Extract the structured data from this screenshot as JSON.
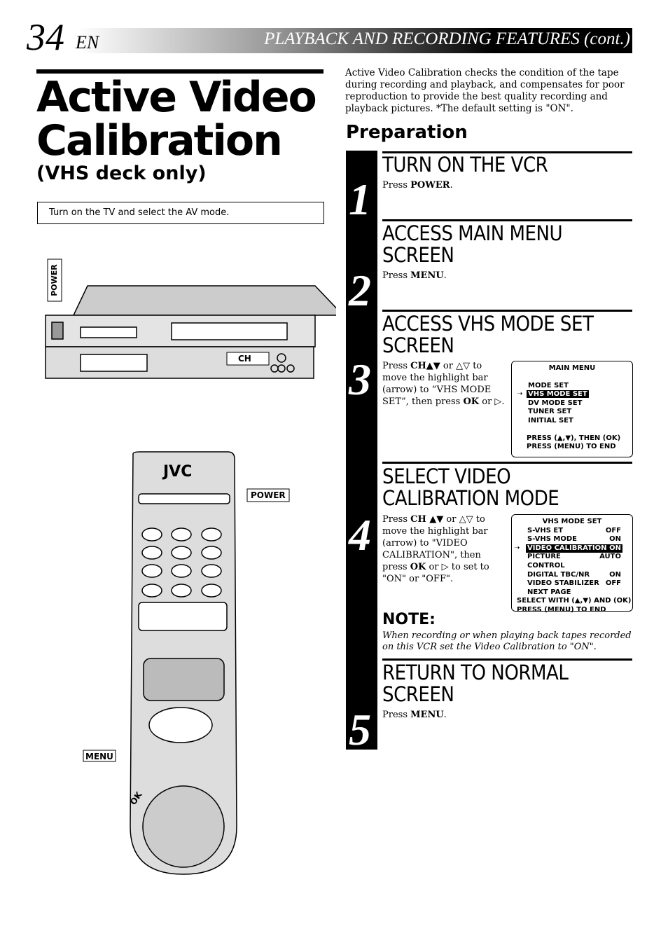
{
  "header": {
    "page_number": "34",
    "lang": "EN",
    "section": "PLAYBACK AND RECORDING FEATURES (cont.)"
  },
  "title": {
    "line1": "Active Video",
    "line2": "Calibration",
    "subtitle": "(VHS deck only)"
  },
  "note_box": "Turn on the TV and select the AV mode.",
  "intro": "Active Video Calibration checks the condition of the tape during recording and playback, and compensates for poor reproduction to provide the best quality recording and playback pictures. *The default setting is \"ON\".",
  "preparation": "Preparation",
  "illustration": {
    "vcr_power": "POWER",
    "vcr_ch": "CH",
    "brand": "JVC",
    "remote_power": "POWER",
    "menu": "MENU",
    "ok": "OK"
  },
  "steps": [
    {
      "number": "1",
      "heading": [
        "TURN ON THE VCR"
      ],
      "body": [
        {
          "text": "Press "
        },
        {
          "text": "POWER",
          "bold": true
        },
        {
          "text": "."
        }
      ]
    },
    {
      "number": "2",
      "heading": [
        "ACCESS MAIN MENU",
        "SCREEN"
      ],
      "body": [
        {
          "text": "Press "
        },
        {
          "text": "MENU",
          "bold": true
        },
        {
          "text": "."
        }
      ]
    },
    {
      "number": "3",
      "heading": [
        "ACCESS VHS MODE SET",
        "SCREEN"
      ],
      "body": [
        {
          "text": "Press "
        },
        {
          "text": "CH▲▼",
          "bold": true
        },
        {
          "text": " or △▽ to move the highlight bar (arrow) to “VHS MODE SET”, then press "
        },
        {
          "text": "OK",
          "bold": true
        },
        {
          "text": " or ▷."
        }
      ]
    },
    {
      "number": "4",
      "heading": [
        "SELECT VIDEO",
        "CALIBRATION MODE"
      ],
      "body": [
        {
          "text": "Press "
        },
        {
          "text": "CH ▲▼",
          "bold": true
        },
        {
          "text": " or △▽ to move the highlight bar (arrow) to \"VIDEO CALIBRATION\", then press "
        },
        {
          "text": "OK",
          "bold": true
        },
        {
          "text": " or ▷ to set to \"ON\" or \"OFF\"."
        }
      ]
    },
    {
      "number": "5",
      "heading": [
        "RETURN TO NORMAL",
        "SCREEN"
      ],
      "body": [
        {
          "text": "Press "
        },
        {
          "text": "MENU",
          "bold": true
        },
        {
          "text": "."
        }
      ]
    }
  ],
  "main_menu": {
    "title": "MAIN MENU",
    "items": [
      {
        "label": "MODE SET"
      },
      {
        "label": "VHS MODE SET",
        "highlighted": true
      },
      {
        "label": "DV MODE SET"
      },
      {
        "label": "TUNER SET"
      },
      {
        "label": "INITIAL SET"
      }
    ],
    "footer": [
      "PRESS (▲,▼), THEN (OK)",
      "PRESS (MENU) TO END"
    ]
  },
  "vhs_menu": {
    "title": "VHS MODE SET",
    "rows": [
      {
        "label": "S-VHS ET",
        "value": "OFF"
      },
      {
        "label": "S-VHS MODE",
        "value": "ON"
      },
      {
        "label": "VIDEO CALIBRATION",
        "value": "ON",
        "highlighted": true
      },
      {
        "label": "PICTURE CONTROL",
        "value": "AUTO"
      },
      {
        "label": "DIGITAL TBC/NR",
        "value": "ON"
      },
      {
        "label": "VIDEO STABILIZER",
        "value": "OFF"
      },
      {
        "label": "NEXT PAGE"
      }
    ],
    "footer": [
      "SELECT WITH (▲,▼) AND (OK)",
      "PRESS (MENU) TO END"
    ]
  },
  "note": {
    "title": "NOTE:",
    "text": "When recording or when playing back tapes recorded on this VCR set the Video Calibration to \"ON\"."
  }
}
